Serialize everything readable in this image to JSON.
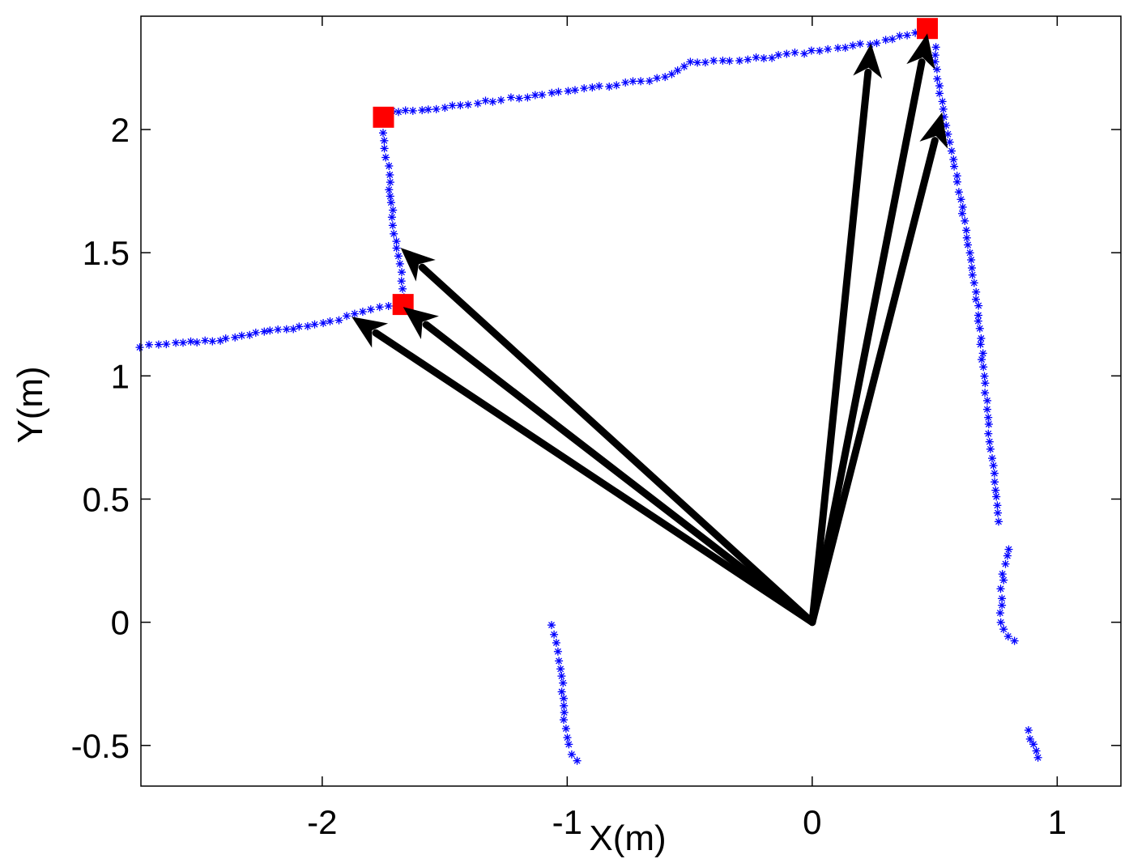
{
  "chart_data": {
    "type": "scatter",
    "title": "",
    "xlabel": "X(m)",
    "ylabel": "Y(m)",
    "xlim": [
      -2.74,
      1.26
    ],
    "ylim": [
      -0.665,
      2.46
    ],
    "grid": false,
    "xticks": [
      -2,
      -1,
      0,
      1
    ],
    "yticks": [
      -0.5,
      0,
      0.5,
      1,
      1.5,
      2
    ],
    "xtick_labels": [
      "-2",
      "-1",
      "0",
      "1"
    ],
    "ytick_labels": [
      "-0.5",
      "0",
      "0.5",
      "1",
      "1.5",
      "2"
    ],
    "scan_color": "#0000ff",
    "scan_marker": "*",
    "scan_segments": [
      {
        "points": [
          [
            -2.74,
            1.12
          ],
          [
            -2.6,
            1.135
          ],
          [
            -2.45,
            1.14
          ],
          [
            -2.3,
            1.17
          ],
          [
            -2.15,
            1.19
          ],
          [
            -2.0,
            1.21
          ],
          [
            -1.9,
            1.24
          ],
          [
            -1.8,
            1.27
          ],
          [
            -1.7,
            1.29
          ]
        ]
      },
      {
        "points": [
          [
            -1.67,
            1.32
          ],
          [
            -1.68,
            1.42
          ],
          [
            -1.7,
            1.55
          ],
          [
            -1.72,
            1.7
          ],
          [
            -1.73,
            1.85
          ],
          [
            -1.76,
            2.02
          ]
        ]
      },
      {
        "points": [
          [
            -1.75,
            2.07
          ],
          [
            -1.5,
            2.09
          ],
          [
            -1.2,
            2.13
          ],
          [
            -0.9,
            2.17
          ],
          [
            -0.6,
            2.21
          ],
          [
            -0.5,
            2.27
          ],
          [
            -0.2,
            2.29
          ],
          [
            0.1,
            2.33
          ],
          [
            0.3,
            2.36
          ],
          [
            0.45,
            2.4
          ]
        ]
      },
      {
        "points": [
          [
            0.5,
            2.33
          ],
          [
            0.52,
            2.15
          ],
          [
            0.56,
            1.95
          ],
          [
            0.6,
            1.75
          ],
          [
            0.64,
            1.5
          ],
          [
            0.68,
            1.25
          ],
          [
            0.7,
            1.0
          ],
          [
            0.72,
            0.8
          ],
          [
            0.74,
            0.6
          ],
          [
            0.76,
            0.38
          ]
        ]
      },
      {
        "points": [
          [
            0.8,
            0.3
          ],
          [
            0.78,
            0.2
          ],
          [
            0.77,
            0.1
          ],
          [
            0.77,
            0.0
          ],
          [
            0.8,
            -0.06
          ],
          [
            0.86,
            -0.1
          ]
        ]
      },
      {
        "points": [
          [
            -1.06,
            -0.01
          ],
          [
            -1.04,
            -0.12
          ],
          [
            -1.02,
            -0.25
          ],
          [
            -1.01,
            -0.4
          ],
          [
            -0.99,
            -0.5
          ],
          [
            -0.95,
            -0.6
          ]
        ]
      },
      {
        "points": [
          [
            0.88,
            -0.44
          ],
          [
            0.9,
            -0.5
          ],
          [
            0.92,
            -0.55
          ],
          [
            0.94,
            -0.59
          ]
        ]
      }
    ],
    "corner_color": "#ff0000",
    "corners": [
      {
        "x": -1.75,
        "y": 2.05
      },
      {
        "x": -1.67,
        "y": 1.29
      },
      {
        "x": 0.47,
        "y": 2.41
      }
    ],
    "arrow_color": "#000000",
    "arrow_origin": [
      0,
      0
    ],
    "arrows": [
      {
        "x": -1.88,
        "y": 1.24
      },
      {
        "x": -1.67,
        "y": 1.28
      },
      {
        "x": -1.68,
        "y": 1.52
      },
      {
        "x": 0.24,
        "y": 2.35
      },
      {
        "x": 0.47,
        "y": 2.39
      },
      {
        "x": 0.53,
        "y": 2.07
      }
    ]
  }
}
